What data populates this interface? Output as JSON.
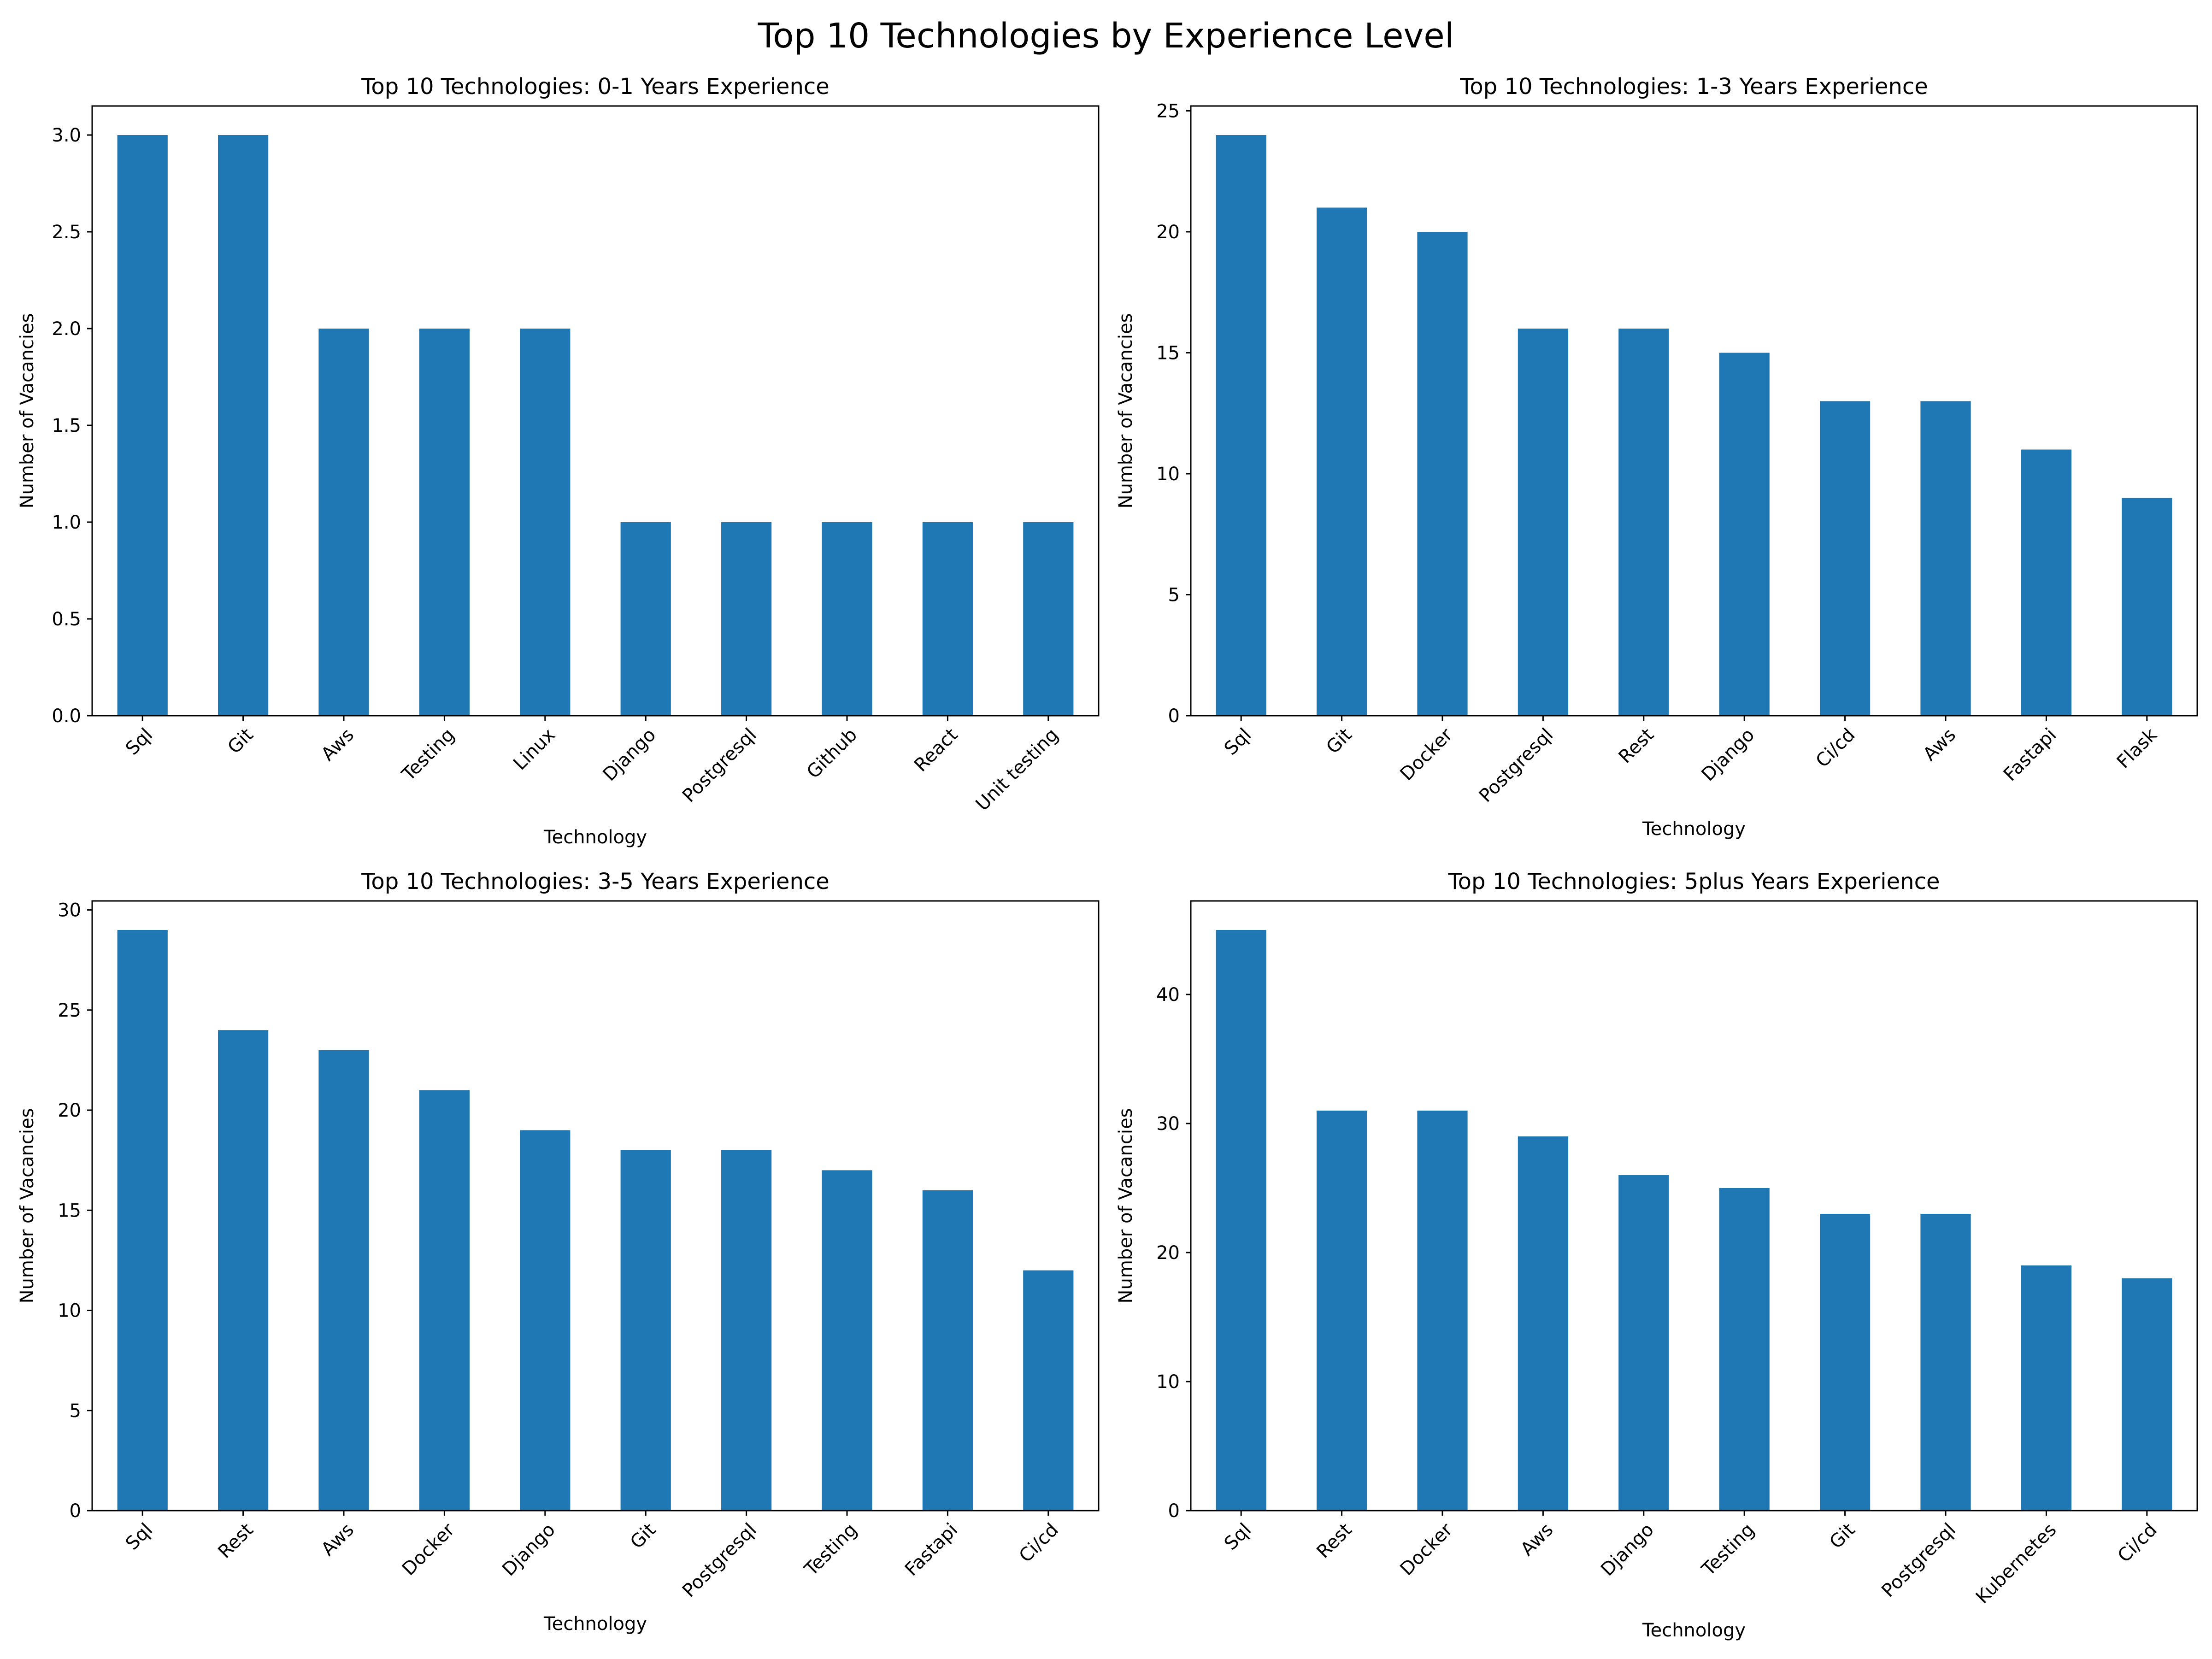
{
  "suptitle": "Top 10 Technologies by Experience Level",
  "colors": {
    "bar": "#1f77b4",
    "axis": "#000000",
    "background": "#ffffff"
  },
  "chart_data": [
    {
      "type": "bar",
      "title": "Top 10 Technologies: 0-1 Years Experience",
      "xlabel": "Technology",
      "ylabel": "Number of Vacancies",
      "categories": [
        "Sql",
        "Git",
        "Aws",
        "Testing",
        "Linux",
        "Django",
        "Postgresql",
        "Github",
        "React",
        "Unit testing"
      ],
      "values": [
        3,
        3,
        2,
        2,
        2,
        1,
        1,
        1,
        1,
        1
      ],
      "ylim": [
        0,
        3.15
      ],
      "yticks": [
        0.0,
        0.5,
        1.0,
        1.5,
        2.0,
        2.5,
        3.0
      ],
      "ytick_labels": [
        "0.0",
        "0.5",
        "1.0",
        "1.5",
        "2.0",
        "2.5",
        "3.0"
      ],
      "grid": false,
      "legend": "none"
    },
    {
      "type": "bar",
      "title": "Top 10 Technologies: 1-3 Years Experience",
      "xlabel": "Technology",
      "ylabel": "Number of Vacancies",
      "categories": [
        "Sql",
        "Git",
        "Docker",
        "Postgresql",
        "Rest",
        "Django",
        "Ci/cd",
        "Aws",
        "Fastapi",
        "Flask"
      ],
      "values": [
        24,
        21,
        20,
        16,
        16,
        15,
        13,
        13,
        11,
        9
      ],
      "ylim": [
        0,
        25.2
      ],
      "yticks": [
        0,
        5,
        10,
        15,
        20,
        25
      ],
      "ytick_labels": [
        "0",
        "5",
        "10",
        "15",
        "20",
        "25"
      ],
      "grid": false,
      "legend": "none"
    },
    {
      "type": "bar",
      "title": "Top 10 Technologies: 3-5 Years Experience",
      "xlabel": "Technology",
      "ylabel": "Number of Vacancies",
      "categories": [
        "Sql",
        "Rest",
        "Aws",
        "Docker",
        "Django",
        "Git",
        "Postgresql",
        "Testing",
        "Fastapi",
        "Ci/cd"
      ],
      "values": [
        29,
        24,
        23,
        21,
        19,
        18,
        18,
        17,
        16,
        12
      ],
      "ylim": [
        0,
        30.45
      ],
      "yticks": [
        0,
        5,
        10,
        15,
        20,
        25,
        30
      ],
      "ytick_labels": [
        "0",
        "5",
        "10",
        "15",
        "20",
        "25",
        "30"
      ],
      "grid": false,
      "legend": "none"
    },
    {
      "type": "bar",
      "title": "Top 10 Technologies: 5plus Years Experience",
      "xlabel": "Technology",
      "ylabel": "Number of Vacancies",
      "categories": [
        "Sql",
        "Rest",
        "Docker",
        "Aws",
        "Django",
        "Testing",
        "Git",
        "Postgresql",
        "Kubernetes",
        "Ci/cd"
      ],
      "values": [
        45,
        31,
        31,
        29,
        26,
        25,
        23,
        23,
        19,
        18
      ],
      "ylim": [
        0,
        47.25
      ],
      "yticks": [
        0,
        10,
        20,
        30,
        40
      ],
      "ytick_labels": [
        "0",
        "10",
        "20",
        "30",
        "40"
      ],
      "grid": false,
      "legend": "none"
    }
  ]
}
